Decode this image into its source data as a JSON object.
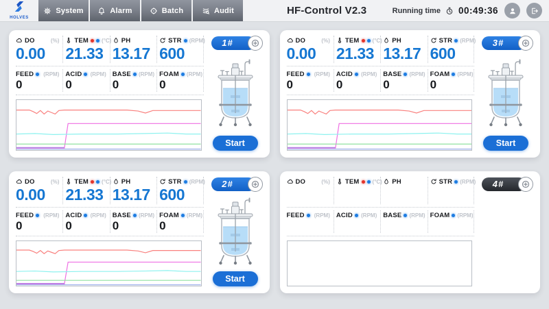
{
  "topbar": {
    "logo_text": "HOLVES",
    "title": "HF-Control V2.3",
    "running_time_label": "Running time",
    "running_time_value": "00:49:36",
    "tabs": [
      {
        "label": "System",
        "icon": "gear-icon"
      },
      {
        "label": "Alarm",
        "icon": "bell-icon"
      },
      {
        "label": "Batch",
        "icon": "target-icon"
      },
      {
        "label": "Audit",
        "icon": "audit-icon"
      }
    ]
  },
  "colors": {
    "accent_blue": "#1677d2",
    "badge_blue": "#1565c9",
    "badge_dark": "#33373e",
    "indicator_red": "#e3342b",
    "indicator_blue": "#1d7ce2",
    "page_bg": "#dfe2e6"
  },
  "panels": [
    {
      "number": "1#",
      "active": true,
      "has_reactor": true,
      "has_trend": true,
      "start_label": "Start",
      "metrics": [
        {
          "key": "do",
          "label": "DO",
          "unit": "(%)",
          "value": "0.00",
          "icon": "cloud-icon",
          "dots": []
        },
        {
          "key": "tem",
          "label": "TEM",
          "unit": "(°C)",
          "value": "21.33",
          "icon": "thermometer-icon",
          "dots": [
            "red",
            "blue"
          ]
        },
        {
          "key": "ph",
          "label": "PH",
          "unit": "",
          "value": "13.17",
          "icon": "droplet-icon",
          "dots": []
        },
        {
          "key": "str",
          "label": "STR",
          "unit": "(RPM)",
          "value": "600",
          "icon": "rotate-icon",
          "dots": [
            "blue"
          ]
        },
        {
          "key": "feed",
          "label": "FEED",
          "unit": "(RPM)",
          "value": "0",
          "icon": null,
          "dots": [
            "blue"
          ]
        },
        {
          "key": "acid",
          "label": "ACID",
          "unit": "(RPM)",
          "value": "0",
          "icon": null,
          "dots": [
            "blue"
          ]
        },
        {
          "key": "base",
          "label": "BASE",
          "unit": "(RPM)",
          "value": "0",
          "icon": null,
          "dots": [
            "blue"
          ]
        },
        {
          "key": "foam",
          "label": "FOAM",
          "unit": "(RPM)",
          "value": "0",
          "icon": null,
          "dots": [
            "blue"
          ]
        }
      ]
    },
    {
      "number": "3#",
      "active": true,
      "has_reactor": true,
      "has_trend": true,
      "start_label": "Start",
      "metrics": [
        {
          "key": "do",
          "label": "DO",
          "unit": "(%)",
          "value": "0.00",
          "icon": "cloud-icon",
          "dots": []
        },
        {
          "key": "tem",
          "label": "TEM",
          "unit": "(°C)",
          "value": "21.33",
          "icon": "thermometer-icon",
          "dots": [
            "red",
            "blue"
          ]
        },
        {
          "key": "ph",
          "label": "PH",
          "unit": "",
          "value": "13.17",
          "icon": "droplet-icon",
          "dots": []
        },
        {
          "key": "str",
          "label": "STR",
          "unit": "(RPM)",
          "value": "600",
          "icon": "rotate-icon",
          "dots": [
            "blue"
          ]
        },
        {
          "key": "feed",
          "label": "FEED",
          "unit": "(RPM)",
          "value": "0",
          "icon": null,
          "dots": [
            "blue"
          ]
        },
        {
          "key": "acid",
          "label": "ACID",
          "unit": "(RPM)",
          "value": "0",
          "icon": null,
          "dots": [
            "blue"
          ]
        },
        {
          "key": "base",
          "label": "BASE",
          "unit": "(RPM)",
          "value": "0",
          "icon": null,
          "dots": [
            "blue"
          ]
        },
        {
          "key": "foam",
          "label": "FOAM",
          "unit": "(RPM)",
          "value": "0",
          "icon": null,
          "dots": [
            "blue"
          ]
        }
      ]
    },
    {
      "number": "2#",
      "active": true,
      "has_reactor": true,
      "has_trend": true,
      "start_label": "Start",
      "metrics": [
        {
          "key": "do",
          "label": "DO",
          "unit": "(%)",
          "value": "0.00",
          "icon": "cloud-icon",
          "dots": []
        },
        {
          "key": "tem",
          "label": "TEM",
          "unit": "(°C)",
          "value": "21.33",
          "icon": "thermometer-icon",
          "dots": [
            "red",
            "blue"
          ]
        },
        {
          "key": "ph",
          "label": "PH",
          "unit": "",
          "value": "13.17",
          "icon": "droplet-icon",
          "dots": []
        },
        {
          "key": "str",
          "label": "STR",
          "unit": "(RPM)",
          "value": "600",
          "icon": "rotate-icon",
          "dots": [
            "blue"
          ]
        },
        {
          "key": "feed",
          "label": "FEED",
          "unit": "(RPM)",
          "value": "0",
          "icon": null,
          "dots": [
            "blue"
          ]
        },
        {
          "key": "acid",
          "label": "ACID",
          "unit": "(RPM)",
          "value": "0",
          "icon": null,
          "dots": [
            "blue"
          ]
        },
        {
          "key": "base",
          "label": "BASE",
          "unit": "(RPM)",
          "value": "0",
          "icon": null,
          "dots": [
            "blue"
          ]
        },
        {
          "key": "foam",
          "label": "FOAM",
          "unit": "(RPM)",
          "value": "0",
          "icon": null,
          "dots": [
            "blue"
          ]
        }
      ]
    },
    {
      "number": "4#",
      "active": false,
      "has_reactor": false,
      "has_trend": false,
      "start_label": null,
      "metrics": [
        {
          "key": "do",
          "label": "DO",
          "unit": "(%)",
          "value": "",
          "icon": "cloud-icon",
          "dots": []
        },
        {
          "key": "tem",
          "label": "TEM",
          "unit": "(°C)",
          "value": "",
          "icon": "thermometer-icon",
          "dots": [
            "red",
            "blue"
          ]
        },
        {
          "key": "ph",
          "label": "PH",
          "unit": "",
          "value": "",
          "icon": "droplet-icon",
          "dots": []
        },
        {
          "key": "str",
          "label": "STR",
          "unit": "(RPM)",
          "value": "",
          "icon": "rotate-icon",
          "dots": [
            "blue"
          ]
        },
        {
          "key": "feed",
          "label": "FEED",
          "unit": "(RPM)",
          "value": "",
          "icon": null,
          "dots": [
            "blue"
          ]
        },
        {
          "key": "acid",
          "label": "ACID",
          "unit": "(RPM)",
          "value": "",
          "icon": null,
          "dots": [
            "blue"
          ]
        },
        {
          "key": "base",
          "label": "BASE",
          "unit": "(RPM)",
          "value": "",
          "icon": null,
          "dots": [
            "blue"
          ]
        },
        {
          "key": "foam",
          "label": "FOAM",
          "unit": "(RPM)",
          "value": "",
          "icon": null,
          "dots": [
            "blue"
          ]
        }
      ]
    }
  ],
  "chart_data": {
    "type": "line",
    "title": "",
    "xlabel": "",
    "ylabel": "",
    "x_range": [
      0,
      100
    ],
    "y_units": "percent-from-top",
    "grid": false,
    "legend": false,
    "applies_to_panels": [
      "1#",
      "2#",
      "3#"
    ],
    "series": [
      {
        "name": "red-line",
        "color": "#f9807e",
        "points": [
          [
            0,
            20
          ],
          [
            7,
            20
          ],
          [
            9,
            23
          ],
          [
            11,
            27
          ],
          [
            13,
            21
          ],
          [
            15,
            28
          ],
          [
            17,
            22
          ],
          [
            19,
            25
          ],
          [
            21,
            28
          ],
          [
            23,
            21
          ],
          [
            26,
            20
          ],
          [
            60,
            20
          ],
          [
            66,
            22
          ],
          [
            70,
            26
          ],
          [
            74,
            21
          ],
          [
            100,
            21
          ]
        ]
      },
      {
        "name": "magenta-line",
        "color": "#ee6fe3",
        "points": [
          [
            0,
            96
          ],
          [
            26,
            96
          ],
          [
            28,
            47
          ],
          [
            100,
            47
          ]
        ]
      },
      {
        "name": "cyan-line",
        "color": "#8df2ef",
        "points": [
          [
            0,
            68
          ],
          [
            10,
            67
          ],
          [
            20,
            69
          ],
          [
            35,
            68
          ],
          [
            55,
            68
          ],
          [
            70,
            67
          ],
          [
            82,
            66
          ],
          [
            92,
            68
          ],
          [
            100,
            68
          ]
        ]
      },
      {
        "name": "green-line",
        "color": "#90e2a0",
        "points": [
          [
            0,
            88
          ],
          [
            100,
            88
          ]
        ]
      },
      {
        "name": "purple-line",
        "color": "#a879e2",
        "points": [
          [
            0,
            95
          ],
          [
            26,
            95
          ]
        ]
      },
      {
        "name": "blue-line",
        "color": "#94aae9",
        "points": [
          [
            0,
            98
          ],
          [
            100,
            98
          ]
        ]
      }
    ]
  }
}
